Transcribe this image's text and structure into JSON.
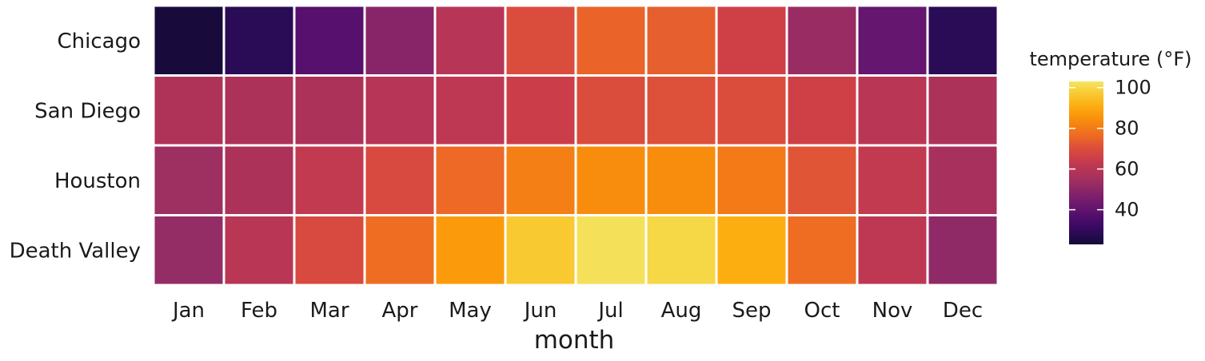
{
  "chart_data": {
    "type": "heatmap",
    "x_title": "month",
    "y_title": "",
    "x_categories": [
      "Jan",
      "Feb",
      "Mar",
      "Apr",
      "May",
      "Jun",
      "Jul",
      "Aug",
      "Sep",
      "Oct",
      "Nov",
      "Dec"
    ],
    "y_categories": [
      "Chicago",
      "San Diego",
      "Houston",
      "Death Valley"
    ],
    "values": [
      [
        24,
        28,
        38,
        49,
        60,
        70,
        75,
        74,
        66,
        53,
        41,
        28
      ],
      [
        58,
        57,
        57,
        60,
        62,
        65,
        70,
        71,
        70,
        66,
        61,
        57
      ],
      [
        54,
        57,
        63,
        69,
        76,
        81,
        84,
        84,
        80,
        72,
        63,
        56
      ],
      [
        52,
        61,
        69,
        77,
        87,
        97,
        102,
        100,
        91,
        77,
        62,
        51
      ]
    ],
    "legend": {
      "title": "temperature (°F)",
      "ticks": [
        40,
        60,
        80,
        100
      ],
      "tick_labels": [
        "40",
        "60",
        "80",
        "100"
      ],
      "range": [
        23,
        103
      ],
      "placement": "right"
    },
    "colormap": "inferno",
    "grid": false
  }
}
